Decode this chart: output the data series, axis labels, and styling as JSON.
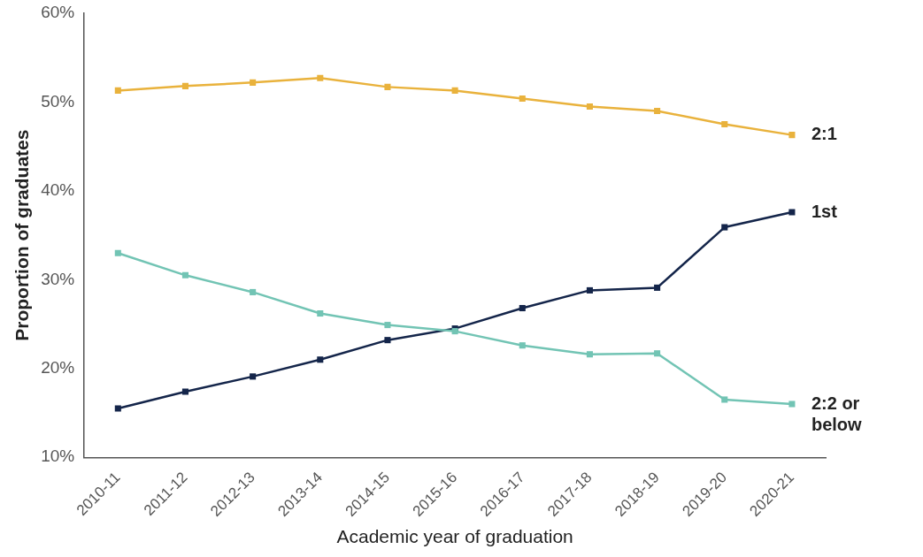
{
  "chart_data": {
    "type": "line",
    "xlabel": "Academic year of graduation",
    "ylabel": "Proportion of graduates",
    "categories": [
      "2010-11",
      "2011-12",
      "2012-13",
      "2013-14",
      "2014-15",
      "2015-16",
      "2016-17",
      "2017-18",
      "2018-19",
      "2019-20",
      "2020-21"
    ],
    "series": [
      {
        "name": "2:1",
        "color": "#e9b23c",
        "values": [
          51.3,
          51.8,
          52.2,
          52.7,
          51.7,
          51.3,
          50.4,
          49.5,
          49.0,
          47.5,
          46.3
        ]
      },
      {
        "name": "1st",
        "color": "#14254a",
        "values": [
          15.5,
          17.4,
          19.1,
          21.0,
          23.2,
          24.5,
          26.8,
          28.8,
          29.1,
          35.9,
          37.6
        ]
      },
      {
        "name": "2:2 or below",
        "color": "#72c4b4",
        "values": [
          33.0,
          30.5,
          28.6,
          26.2,
          24.9,
          24.2,
          22.6,
          21.6,
          21.7,
          16.5,
          16.0
        ]
      }
    ],
    "ylim": [
      10,
      60
    ],
    "yticks": [
      {
        "value": 10,
        "label": "10%"
      },
      {
        "value": 20,
        "label": "20%"
      },
      {
        "value": 30,
        "label": "30%"
      },
      {
        "value": 40,
        "label": "40%"
      },
      {
        "value": 50,
        "label": "50%"
      },
      {
        "value": 60,
        "label": "60%"
      }
    ],
    "grid": false,
    "legend": false,
    "marker": "square",
    "line_style": "solid"
  }
}
